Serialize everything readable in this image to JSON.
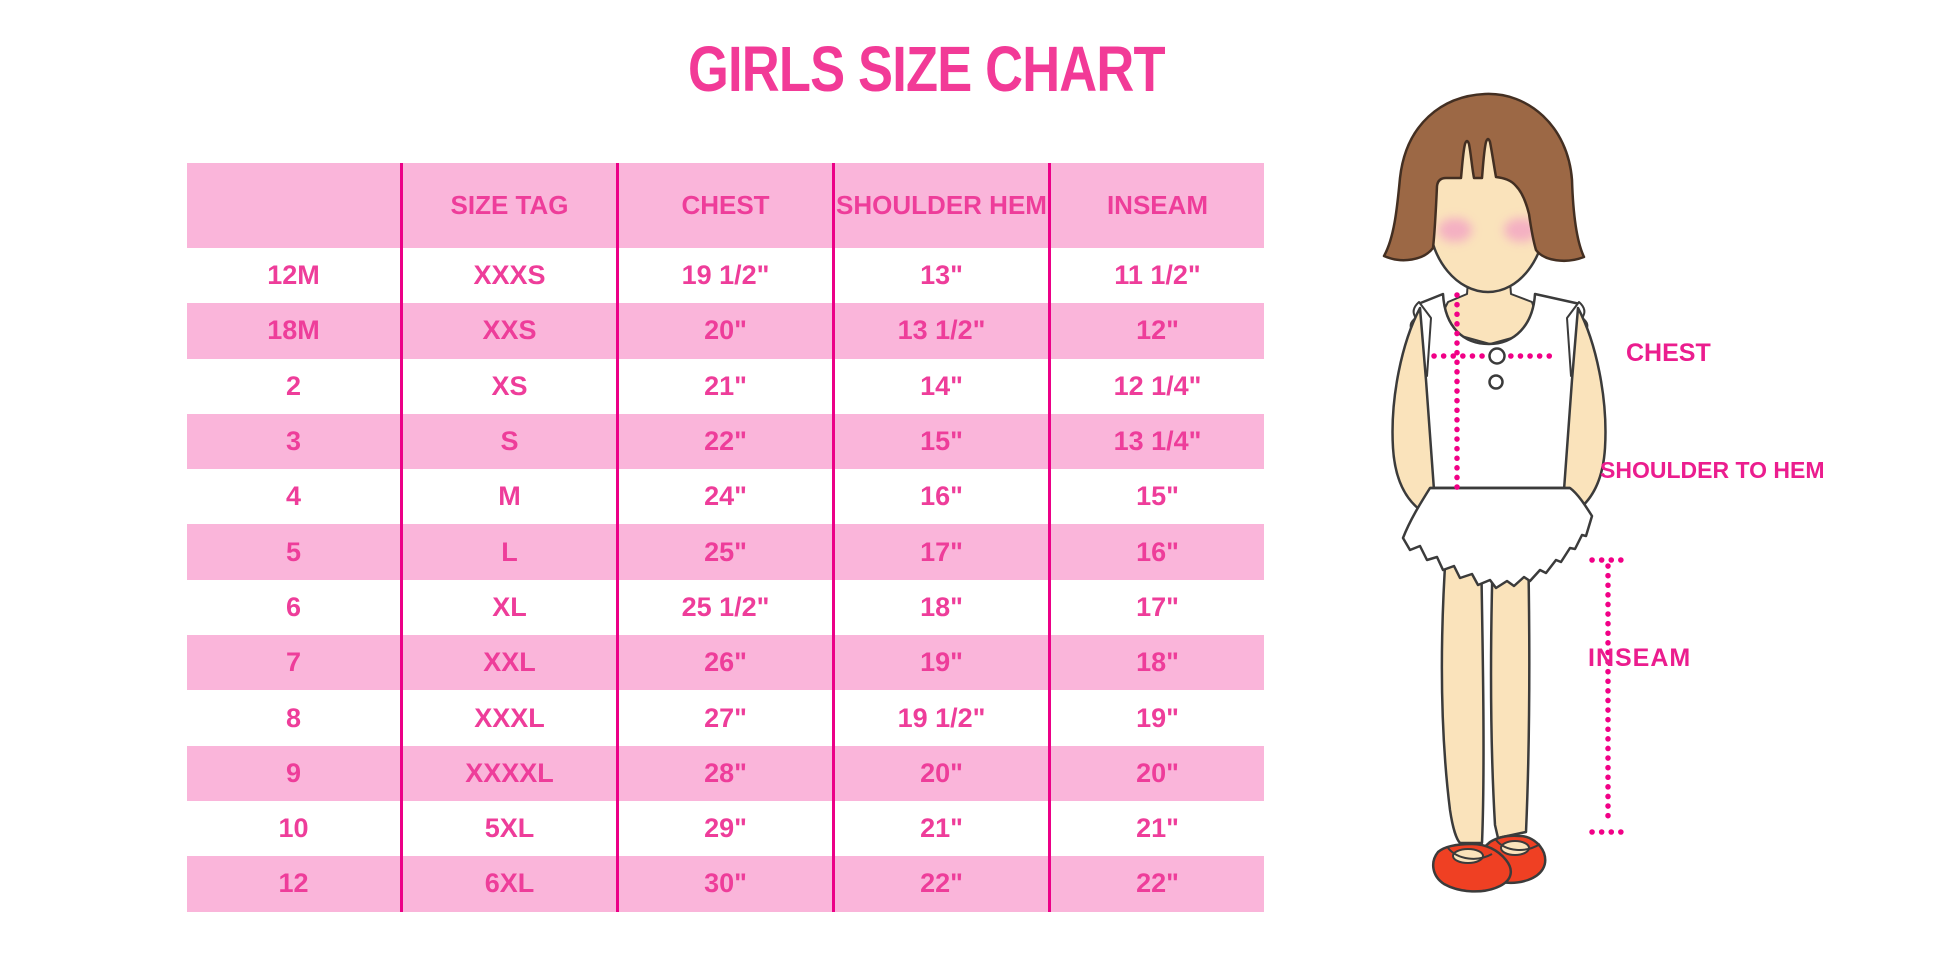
{
  "chart_data": {
    "type": "table",
    "title": "GIRLS SIZE CHART",
    "columns": [
      "",
      "SIZE TAG",
      "CHEST",
      "SHOULDER HEM",
      "INSEAM"
    ],
    "rows": [
      [
        "12M",
        "XXXS",
        "19 1/2\"",
        "13\"",
        "11 1/2\""
      ],
      [
        "18M",
        "XXS",
        "20\"",
        "13 1/2\"",
        "12\""
      ],
      [
        "2",
        "XS",
        "21\"",
        "14\"",
        "12 1/4\""
      ],
      [
        "3",
        "S",
        "22\"",
        "15\"",
        "13 1/4\""
      ],
      [
        "4",
        "M",
        "24\"",
        "16\"",
        "15\""
      ],
      [
        "5",
        "L",
        "25\"",
        "17\"",
        "16\""
      ],
      [
        "6",
        "XL",
        "25 1/2\"",
        "18\"",
        "17\""
      ],
      [
        "7",
        "XXL",
        "26\"",
        "19\"",
        "18\""
      ],
      [
        "8",
        "XXXL",
        "27\"",
        "19 1/2\"",
        "19\""
      ],
      [
        "9",
        "XXXXL",
        "28\"",
        "20\"",
        "20\""
      ],
      [
        "10",
        "5XL",
        "29\"",
        "21\"",
        "21\""
      ],
      [
        "12",
        "6XL",
        "30\"",
        "22\"",
        "22\""
      ]
    ],
    "layout_hints": {
      "striping": "header and alternate rows pink, others white",
      "dividers": "vertical magenta lines between all five columns"
    }
  },
  "diagram": {
    "labels": {
      "chest": "CHEST",
      "shoulder_to_hem": "SHOULDER TO HEM",
      "inseam": "INSEAM"
    }
  },
  "colors": {
    "accent_pink": "#F23A97",
    "row_pink": "#FAB5DA",
    "divider": "#EC0087",
    "table_text": "#EE3D9A",
    "label_magenta": "#EB1D8E",
    "dotted_line": "#F10086",
    "hair_brown": "#9C6845",
    "skin": "#FAE3BB",
    "shoe_red": "#EF4023",
    "outline_dark": "#3B3B3B"
  }
}
